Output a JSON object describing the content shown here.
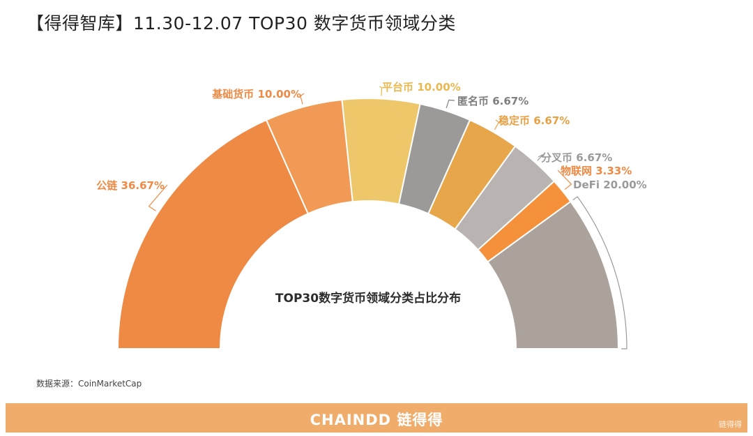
{
  "header": {
    "title": "【得得智库】11.30-12.07  TOP30 数字货币领域分类"
  },
  "chart_data": {
    "type": "pie",
    "variant": "half-donut",
    "center_label": "TOP30数字货币领域分类占比分布",
    "watermark": "CHAINDD 链得得",
    "slices": [
      {
        "name": "公链",
        "value": 36.67,
        "label": "公链 36.67%",
        "color": "#ef8a45",
        "label_color": "#ef8a45"
      },
      {
        "name": "基础货币",
        "value": 10.0,
        "label": "基础货币 10.00%",
        "color": "#f19a55",
        "label_color": "#ef8a45"
      },
      {
        "name": "平台币",
        "value": 10.0,
        "label": "平台币 10.00%",
        "color": "#eec76a",
        "label_color": "#e9b84e"
      },
      {
        "name": "匿名币",
        "value": 6.67,
        "label": "匿名币 6.67%",
        "color": "#9c9a99",
        "label_color": "#7f7f7f"
      },
      {
        "name": "稳定币",
        "value": 6.67,
        "label": "稳定币 6.67%",
        "color": "#e8a64a",
        "label_color": "#e7a044"
      },
      {
        "name": "分叉币",
        "value": 6.67,
        "label": "分叉币 6.67%",
        "color": "#b9b4b1",
        "label_color": "#9a9a9a"
      },
      {
        "name": "物联网",
        "value": 3.33,
        "label": "物联网 3.33%",
        "color": "#f4913a",
        "label_color": "#ef8a45"
      },
      {
        "name": "DeFi",
        "value": 20.0,
        "label": "DeFi 20.00%",
        "color": "#aba29c",
        "label_color": "#9a9a9a"
      }
    ]
  },
  "source": {
    "text": "数据来源：CoinMarketCap"
  },
  "footer": {
    "logo": "CHAINDD 链得得",
    "badge": "链得得"
  }
}
